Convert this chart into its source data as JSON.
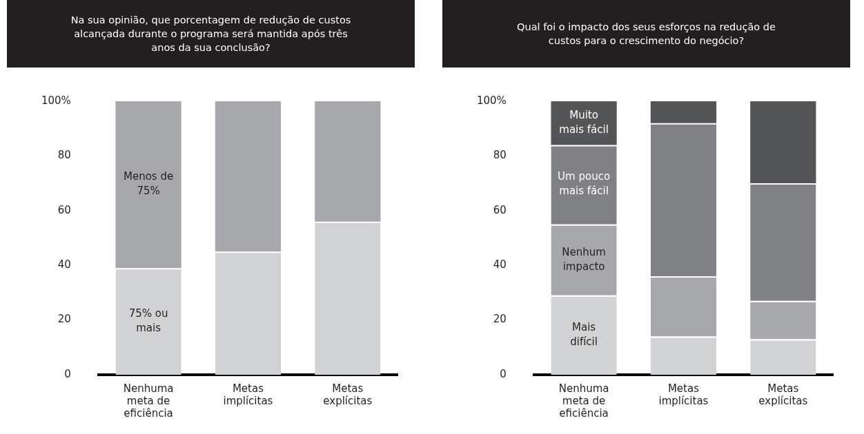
{
  "chart_data": [
    {
      "type": "bar",
      "title": "Na sua opinião, que porcentagem de redução de custos alcançada durante o programa será mantida após três anos da sua conclusão?",
      "categories": [
        "Nenhuma meta de eficiência",
        "Metas implícitas",
        "Metas explícitas"
      ],
      "stacked": true,
      "series": [
        {
          "name": "75% ou mais",
          "color": "#d1d2d4",
          "values": [
            39,
            45,
            56
          ]
        },
        {
          "name": "Menos de 75%",
          "color": "#a7a8ab",
          "values": [
            61,
            55,
            44
          ]
        }
      ],
      "ylim": [
        0,
        100
      ],
      "yticks": [
        0,
        20,
        40,
        60,
        80,
        {
          "value": 100,
          "label": "100%"
        }
      ],
      "grid": false,
      "legend": false
    },
    {
      "type": "bar",
      "title": "Qual foi o impacto dos seus esforços na redução de custos para o crescimento do negócio?",
      "categories": [
        "Nenhuma meta de eficiência",
        "Metas implícitas",
        "Metas explícitas"
      ],
      "stacked": true,
      "series": [
        {
          "name": "Mais difícil",
          "color": "#d1d2d4",
          "values": [
            29,
            14,
            13
          ]
        },
        {
          "name": "Nenhum impacto",
          "color": "#a7a8ab",
          "values": [
            26,
            22,
            14
          ]
        },
        {
          "name": "Um pouco mais fácil",
          "color": "#808185",
          "values": [
            29,
            56,
            43
          ]
        },
        {
          "name": "Muito mais fácil",
          "color": "#545557",
          "values": [
            16,
            8,
            30
          ]
        }
      ],
      "ylim": [
        0,
        100
      ],
      "yticks": [
        0,
        20,
        40,
        60,
        80,
        {
          "value": 100,
          "label": "100%"
        }
      ],
      "grid": false,
      "legend": false
    }
  ]
}
